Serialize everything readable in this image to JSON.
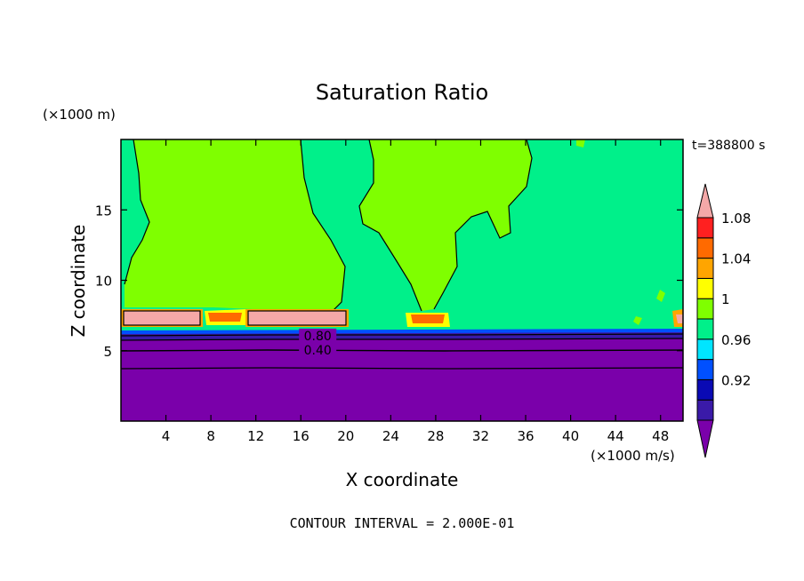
{
  "chart_data": {
    "type": "heatmap",
    "title": "Saturation Ratio",
    "xlabel": "X coordinate",
    "ylabel": "Z coordinate",
    "x_unit": "(×1000 m/s)",
    "y_unit": "(×1000 m)",
    "time_label": "t=388800 s",
    "footer": "CONTOUR INTERVAL = 2.000E-01",
    "xlim": [
      0,
      50
    ],
    "ylim": [
      0,
      20
    ],
    "x_ticks": [
      4,
      8,
      12,
      16,
      20,
      24,
      28,
      32,
      36,
      40,
      44,
      48
    ],
    "y_ticks": [
      5,
      10,
      15
    ],
    "contour_labels": [
      {
        "text": "0.80",
        "x": 17.5,
        "y": 6.0
      },
      {
        "text": "0.40",
        "x": 17.5,
        "y": 5.0
      }
    ],
    "colorbar": {
      "levels": [
        0.92,
        0.96,
        1,
        1.04,
        1.08
      ],
      "labels": [
        "0.92",
        "0.96",
        "1",
        "1.04",
        "1.08"
      ],
      "colors": [
        "#7a00aa",
        "#3a1aa8",
        "#0a0ab4",
        "#0050ff",
        "#00e5ff",
        "#00f08a",
        "#7fff00",
        "#ffff00",
        "#ffa500",
        "#ff6a00",
        "#ff2020",
        "#f4a8a8"
      ]
    },
    "regions": {
      "low_layer_top_z": 6.3,
      "low_layer_color": "#7a00aa",
      "mid_color": "#00f08a",
      "high_color": "#7fff00",
      "supersat_color": "#f4a8a8"
    }
  }
}
